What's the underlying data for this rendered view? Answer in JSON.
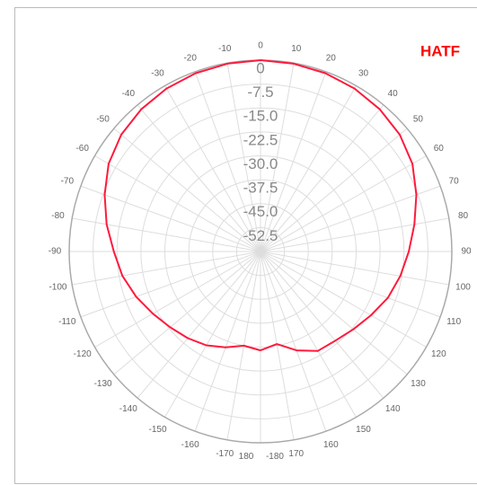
{
  "chart_data": {
    "type": "polar",
    "title": "HATF",
    "theta": [
      -180,
      -170,
      -160,
      -150,
      -140,
      -130,
      -120,
      -110,
      -100,
      -90,
      -80,
      -70,
      -60,
      -50,
      -40,
      -30,
      -20,
      -10,
      0,
      10,
      20,
      30,
      40,
      50,
      60,
      70,
      80,
      90,
      100,
      110,
      120,
      130,
      140,
      150,
      160,
      170,
      180
    ],
    "series": [
      {
        "color": "#ff1a3c",
        "values": [
          -29,
          -30,
          -28,
          -26,
          -24.5,
          -23,
          -21,
          -18.5,
          -16,
          -14,
          -11,
          -8,
          -5,
          -3,
          -1.8,
          -1,
          -0.5,
          -0.2,
          0,
          -0.2,
          -0.5,
          -1,
          -1.8,
          -3,
          -5,
          -8,
          -11,
          -13.5,
          -15.5,
          -17.5,
          -20,
          -22,
          -23.5,
          -24,
          -27,
          -30.5,
          -29
        ]
      }
    ],
    "rlim": [
      -60,
      0
    ],
    "rticks": [
      0,
      -7.5,
      {
        "value": -15,
        "label": "-15.0"
      },
      -22.5,
      {
        "value": -30,
        "label": "-30.0"
      },
      -37.5,
      {
        "value": -45,
        "label": "-45.0"
      },
      -52.5
    ],
    "thetaticks": [
      -180,
      -170,
      -160,
      -150,
      -140,
      -130,
      -120,
      -110,
      -100,
      -90,
      -80,
      -70,
      -60,
      -50,
      -40,
      -30,
      -20,
      -10,
      0,
      10,
      20,
      30,
      40,
      50,
      60,
      70,
      80,
      90,
      100,
      110,
      120,
      130,
      140,
      150,
      160,
      170,
      180
    ],
    "grid": true
  }
}
